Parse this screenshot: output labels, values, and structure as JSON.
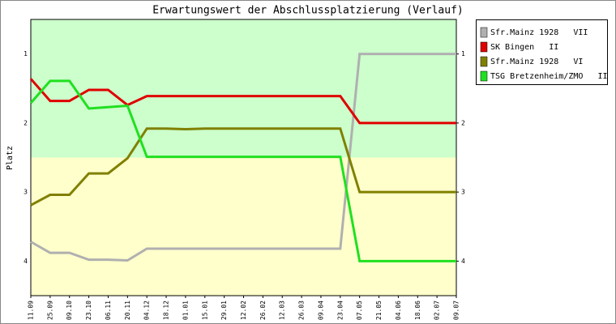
{
  "chart_data": {
    "type": "line",
    "title": "Erwartungswert der Abschlussplatzierung (Verlauf)",
    "y_label": "Platz",
    "categories": [
      "11.09",
      "25.09",
      "09.10",
      "23.10",
      "06.11",
      "20.11",
      "04.12",
      "18.12",
      "01.01",
      "15.01",
      "29.01",
      "12.02",
      "26.02",
      "12.03",
      "26.03",
      "09.04",
      "23.04",
      "07.05",
      "21.05",
      "04.06",
      "18.06",
      "02.07",
      "09.07"
    ],
    "ylim": [
      0.5,
      4.5
    ],
    "y_inverted": true,
    "yticks": [
      1,
      2,
      3,
      4
    ],
    "bands": [
      {
        "from": 0.5,
        "to": 2.5,
        "color": "#ccffcc"
      },
      {
        "from": 2.5,
        "to": 4.5,
        "color": "#ffffcc"
      }
    ],
    "legend": "right",
    "series": [
      {
        "name": "Sfr.Mainz 1928   VII",
        "color": "#b0b0b0",
        "values": [
          3.72,
          3.88,
          3.88,
          3.98,
          3.98,
          3.99,
          3.82,
          3.82,
          3.82,
          3.82,
          3.82,
          3.82,
          3.82,
          3.82,
          3.82,
          3.82,
          3.82,
          1.0,
          1.0,
          1.0,
          1.0,
          1.0,
          1.0
        ]
      },
      {
        "name": "SK Bingen   II",
        "color": "#e00000",
        "values": [
          1.36,
          1.68,
          1.68,
          1.52,
          1.52,
          1.74,
          1.61,
          1.61,
          1.61,
          1.61,
          1.61,
          1.61,
          1.61,
          1.61,
          1.61,
          1.61,
          1.61,
          2.0,
          2.0,
          2.0,
          2.0,
          2.0,
          2.0
        ]
      },
      {
        "name": "Sfr.Mainz 1928   VI",
        "color": "#808000",
        "values": [
          3.19,
          3.04,
          3.04,
          2.73,
          2.73,
          2.51,
          2.08,
          2.08,
          2.09,
          2.08,
          2.08,
          2.08,
          2.08,
          2.08,
          2.08,
          2.08,
          2.08,
          3.0,
          3.0,
          3.0,
          3.0,
          3.0,
          3.0
        ]
      },
      {
        "name": "TSG Bretzenheim/ZMO   II",
        "color": "#20e020",
        "values": [
          1.71,
          1.39,
          1.39,
          1.79,
          1.77,
          1.75,
          2.49,
          2.49,
          2.49,
          2.49,
          2.49,
          2.49,
          2.49,
          2.49,
          2.49,
          2.49,
          2.49,
          4.0,
          4.0,
          4.0,
          4.0,
          4.0,
          4.0
        ]
      }
    ]
  }
}
